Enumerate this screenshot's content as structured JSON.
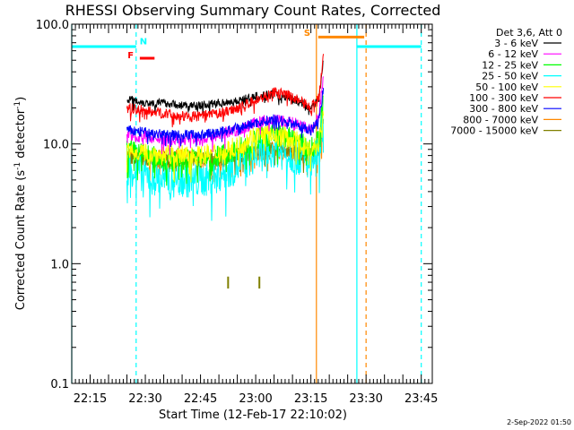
{
  "chart_data": {
    "type": "line",
    "title": "RHESSI Observing Summary Count Rates, Corrected",
    "xlabel": "Start Time (12-Feb-17 22:10:02)",
    "ylabel": "Corrected Count Rate (s",
    "ylabel_sup1": "-1",
    "ylabel_mid": " detector",
    "ylabel_sup2": "-1",
    "ylabel_end": ")",
    "yscale": "log",
    "ylim": [
      0.1,
      100.0
    ],
    "xlim_minutes": [
      0,
      98
    ],
    "x_ticks": [
      {
        "m": 5,
        "label": "22:15"
      },
      {
        "m": 20,
        "label": "22:30"
      },
      {
        "m": 35,
        "label": "22:45"
      },
      {
        "m": 50,
        "label": "23:00"
      },
      {
        "m": 65,
        "label": "23:15"
      },
      {
        "m": 80,
        "label": "23:30"
      },
      {
        "m": 95,
        "label": "23:45"
      }
    ],
    "y_ticks": [
      {
        "v": 100.0,
        "label": "100.0"
      },
      {
        "v": 10.0,
        "label": "10.0"
      },
      {
        "v": 1.0,
        "label": "1.0"
      },
      {
        "v": 0.1,
        "label": "0.1"
      }
    ],
    "detector_label": "Det 3,6, Att 0",
    "series": [
      {
        "name": "3 - 6 keV",
        "color": "#000000",
        "x": [
          15,
          20,
          25,
          30,
          35,
          40,
          45,
          50,
          55,
          60,
          65,
          67.2,
          68.5
        ],
        "y": [
          24,
          22,
          22,
          21,
          21,
          22,
          23,
          25,
          26,
          24,
          20,
          24,
          52
        ]
      },
      {
        "name": "6 - 12 keV",
        "color": "#ff00ff",
        "x": [
          15,
          20,
          25,
          30,
          35,
          40,
          45,
          50,
          55,
          60,
          65,
          67.2,
          68.5
        ],
        "y": [
          12,
          11.5,
          11,
          11,
          11,
          12,
          13,
          15,
          16,
          15,
          13,
          17,
          40
        ]
      },
      {
        "name": "12 - 25 keV",
        "color": "#00ff00",
        "x": [
          15,
          20,
          25,
          30,
          35,
          40,
          45,
          50,
          55,
          60,
          65,
          67.2,
          68.5
        ],
        "y": [
          9,
          8,
          7.5,
          7.5,
          7.5,
          8,
          9,
          11,
          12,
          11,
          9,
          11,
          24
        ]
      },
      {
        "name": "25 - 50 keV",
        "color": "#00ffff",
        "x": [
          15,
          20,
          25,
          30,
          35,
          40,
          45,
          50,
          55,
          60,
          65,
          67.2,
          68.5
        ],
        "y": [
          6.5,
          5.5,
          5,
          5,
          5,
          5.5,
          6.5,
          8,
          9,
          8,
          7,
          9,
          16
        ]
      },
      {
        "name": "50 - 100 keV",
        "color": "#ffff00",
        "x": [
          15,
          20,
          25,
          30,
          35,
          40,
          45,
          50,
          55,
          60,
          65,
          67.2,
          68.5
        ],
        "y": [
          9,
          8.5,
          8,
          8,
          8,
          8.5,
          9.5,
          12,
          12,
          11,
          9,
          10,
          20
        ]
      },
      {
        "name": "100 - 300 keV",
        "color": "#ff0000",
        "x": [
          15,
          20,
          25,
          30,
          35,
          40,
          45,
          50,
          55,
          60,
          65,
          67.2,
          68.5
        ],
        "y": [
          20,
          19,
          18,
          17,
          17,
          18,
          20,
          23,
          27,
          25,
          20,
          25,
          62
        ]
      },
      {
        "name": "300 - 800 keV",
        "color": "#0000ff",
        "x": [
          15,
          20,
          25,
          30,
          35,
          40,
          45,
          50,
          55,
          60,
          65,
          67.2,
          68.5
        ],
        "y": [
          13,
          12.5,
          12,
          12,
          12,
          12.5,
          13.5,
          15,
          16,
          15,
          13,
          16,
          30
        ]
      },
      {
        "name": "800 - 7000 keV",
        "color": "#ff8800",
        "x": [
          15,
          20,
          25,
          30,
          35,
          40,
          45,
          50,
          55,
          60,
          65,
          67.2,
          68.5
        ],
        "y": [
          8,
          7.5,
          7.5,
          7.5,
          7.5,
          7.5,
          8,
          8.5,
          9,
          8.5,
          8,
          9,
          15
        ]
      },
      {
        "name": "7000 - 15000 keV",
        "color": "#808000",
        "x": [
          15,
          20,
          25,
          30,
          35,
          40,
          45,
          50,
          55,
          60,
          65,
          67.2,
          68.5
        ],
        "y": [
          8,
          7.5,
          7.5,
          7.5,
          7.5,
          7.5,
          8,
          8.5,
          9,
          8.5,
          8,
          9,
          15
        ]
      }
    ],
    "vertical_lines": [
      {
        "m": 0,
        "color": "#00ffff",
        "style": "solid"
      },
      {
        "m": 17.5,
        "color": "#00ffff",
        "style": "dashed"
      },
      {
        "m": 66.5,
        "color": "#ff8800",
        "style": "solid"
      },
      {
        "m": 77.5,
        "color": "#00ffff",
        "style": "solid"
      },
      {
        "m": 80,
        "color": "#ff8800",
        "style": "dashed"
      },
      {
        "m": 95,
        "color": "#00ffff",
        "style": "dashed"
      }
    ],
    "top_bars": [
      {
        "m0": 0,
        "m1": 17.5,
        "v": 65,
        "color": "#00ffff"
      },
      {
        "m0": 77.5,
        "m1": 95,
        "v": 65,
        "color": "#00ffff"
      },
      {
        "m0": 67,
        "m1": 79.5,
        "v": 78,
        "color": "#ff8800"
      },
      {
        "m0": 18.5,
        "m1": 22.5,
        "v": 52,
        "color": "#ff0000"
      }
    ],
    "flag_labels": [
      {
        "text": "N",
        "m": 19.5,
        "v": 68,
        "color": "#00ffff"
      },
      {
        "text": "F",
        "m": 16,
        "v": 52,
        "color": "#ff0000"
      },
      {
        "text": "S",
        "m": 64,
        "v": 80,
        "color": "#ff8800"
      }
    ],
    "small_marks": [
      {
        "m": 42.5,
        "v0": 0.62,
        "v1": 0.78,
        "color": "#808000"
      },
      {
        "m": 51,
        "v0": 0.62,
        "v1": 0.78,
        "color": "#808000"
      }
    ]
  },
  "footer_timestamp": "2-Sep-2022 01:50"
}
